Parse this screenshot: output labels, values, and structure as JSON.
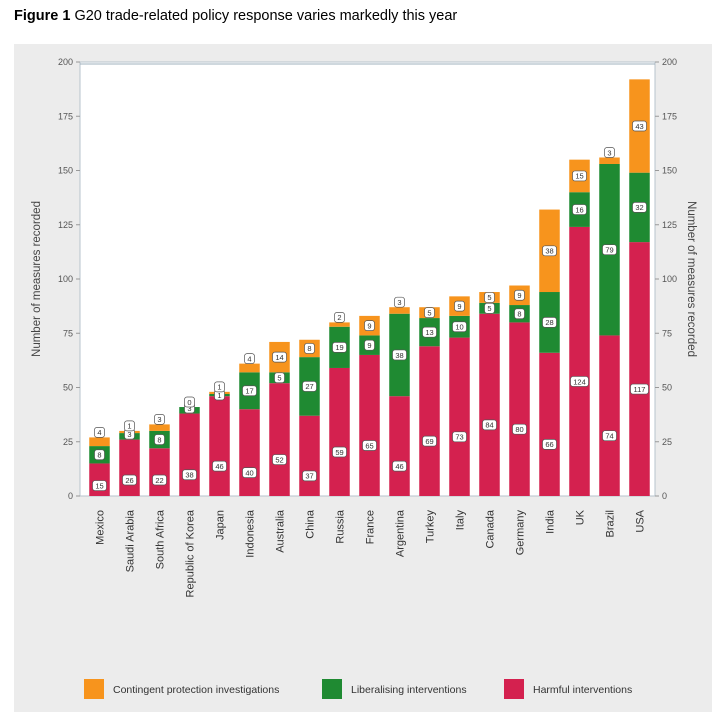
{
  "figure": {
    "label": "Figure 1",
    "caption": "G20 trade-related policy response varies markedly this year"
  },
  "chart_data": {
    "type": "bar",
    "stacked": true,
    "categories": [
      "Mexico",
      "Saudi Arabia",
      "South Africa",
      "Republic of Korea",
      "Japan",
      "Indonesia",
      "Australia",
      "China",
      "Russia",
      "France",
      "Argentina",
      "Turkey",
      "Italy",
      "Canada",
      "Germany",
      "India",
      "UK",
      "Brazil",
      "USA"
    ],
    "series": [
      {
        "name": "Harmful interventions",
        "color": "#d4214f",
        "values": [
          15,
          26,
          22,
          38,
          46,
          40,
          52,
          37,
          59,
          65,
          46,
          69,
          73,
          84,
          80,
          66,
          124,
          74,
          117
        ]
      },
      {
        "name": "Liberalising interventions",
        "color": "#1f8a32",
        "values": [
          8,
          3,
          8,
          3,
          1,
          17,
          5,
          27,
          19,
          9,
          38,
          13,
          10,
          5,
          8,
          28,
          16,
          79,
          32
        ]
      },
      {
        "name": "Contingent protection investigations",
        "color": "#f7941d",
        "values": [
          4,
          1,
          3,
          0,
          1,
          4,
          14,
          8,
          2,
          9,
          3,
          5,
          9,
          5,
          9,
          38,
          15,
          3,
          43
        ]
      }
    ],
    "ylabel": "Number of measures recorded",
    "ylabel_right": "Number of measures recorded",
    "ylim": [
      0,
      200
    ],
    "yticks": [
      0,
      25,
      50,
      75,
      100,
      125,
      150,
      175,
      200
    ],
    "grid": false,
    "legend_position": "bottom",
    "legend_order": [
      "Contingent protection investigations",
      "Liberalising interventions",
      "Harmful interventions"
    ]
  }
}
